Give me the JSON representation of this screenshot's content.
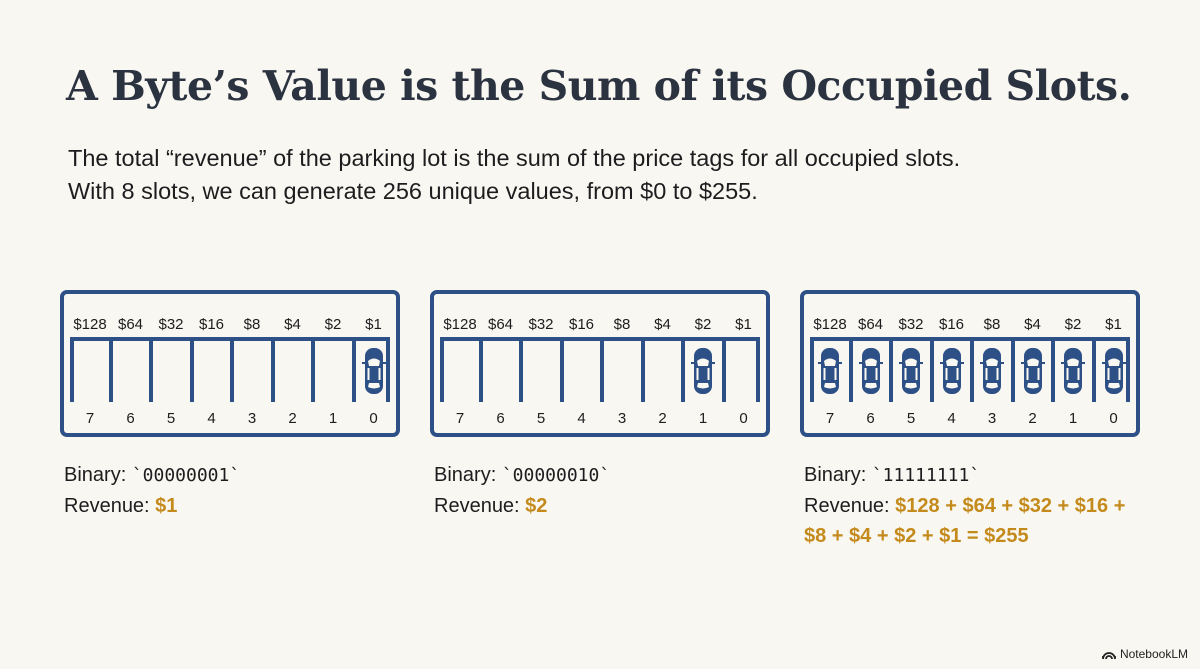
{
  "title": "A Byte’s Value is the Sum of its Occupied Slots.",
  "subtitle_lines": [
    "The total “revenue” of the parking lot is the sum of the price tags for all occupied slots.",
    "With 8 slots, we can generate 256 unique values, from $0 to $255."
  ],
  "prices": [
    "$128",
    "$64",
    "$32",
    "$16",
    "$8",
    "$4",
    "$2",
    "$1"
  ],
  "slot_numbers": [
    "7",
    "6",
    "5",
    "4",
    "3",
    "2",
    "1",
    "0"
  ],
  "colors": {
    "lot": "#2d5087",
    "revenue": "#c48a1c",
    "title": "#2b3240"
  },
  "panels": [
    {
      "occupied_slots": [
        0
      ],
      "binary_label": "Binary: ",
      "binary": "`00000001`",
      "revenue_label": "Revenue: ",
      "revenue": "$1"
    },
    {
      "occupied_slots": [
        1
      ],
      "binary_label": "Binary: ",
      "binary": "`00000010`",
      "revenue_label": "Revenue: ",
      "revenue": "$2"
    },
    {
      "occupied_slots": [
        0,
        1,
        2,
        3,
        4,
        5,
        6,
        7
      ],
      "binary_label": "Binary: ",
      "binary": "`11111111`",
      "revenue_label": "Revenue: ",
      "revenue": "$128 + $64 + $32 + $16 + $8 + $4 + $2 + $1 = $255"
    }
  ],
  "brand": "NotebookLM",
  "brand_icon": "notebooklm-logo-icon",
  "car_icon": "car-icon"
}
